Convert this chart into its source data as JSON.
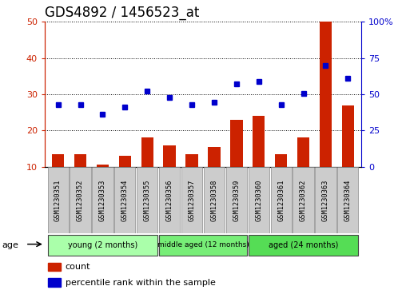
{
  "title": "GDS4892 / 1456523_at",
  "samples": [
    "GSM1230351",
    "GSM1230352",
    "GSM1230353",
    "GSM1230354",
    "GSM1230355",
    "GSM1230356",
    "GSM1230357",
    "GSM1230358",
    "GSM1230359",
    "GSM1230360",
    "GSM1230361",
    "GSM1230362",
    "GSM1230363",
    "GSM1230364"
  ],
  "counts": [
    13.5,
    13.5,
    10.5,
    13.0,
    18.0,
    16.0,
    13.5,
    15.5,
    23.0,
    24.0,
    13.5,
    18.0,
    50.0,
    27.0
  ],
  "percentiles": [
    43.0,
    43.0,
    36.0,
    41.0,
    52.0,
    48.0,
    43.0,
    44.5,
    57.0,
    59.0,
    43.0,
    50.5,
    70.0,
    61.0
  ],
  "groups": [
    {
      "label": "young (2 months)",
      "start": 0,
      "end": 5,
      "color": "#AAFFAA"
    },
    {
      "label": "middle aged (12 months)",
      "start": 5,
      "end": 9,
      "color": "#77EE77"
    },
    {
      "label": "aged (24 months)",
      "start": 9,
      "end": 14,
      "color": "#55DD55"
    }
  ],
  "ylim_left": [
    10,
    50
  ],
  "ylim_right": [
    0,
    100
  ],
  "yticks_left": [
    10,
    20,
    30,
    40,
    50
  ],
  "yticks_right": [
    0,
    25,
    50,
    75,
    100
  ],
  "bar_color": "#CC2200",
  "dot_color": "#0000CC",
  "bar_width": 0.55,
  "left_axis_color": "#CC2200",
  "right_axis_color": "#0000CC",
  "bg_color": "#FFFFFF",
  "tick_label_bg": "#CCCCCC",
  "legend_count_label": "count",
  "legend_pct_label": "percentile rank within the sample",
  "age_label": "age",
  "title_fontsize": 12,
  "tick_fontsize": 8
}
